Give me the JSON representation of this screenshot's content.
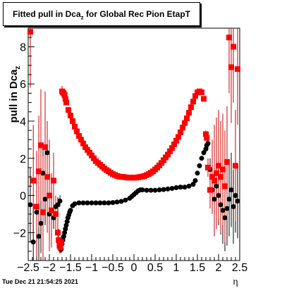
{
  "window": {
    "timestamp": "Tue Dec 21 21:54:25 2021"
  },
  "chart_data": {
    "type": "scatter",
    "title": "Fitted pull in Dca",
    "title_sub": "z",
    "title_suffix": " for Global Rec Pion EtapT",
    "xlabel": "η",
    "ylabel": "pull in Dca",
    "ylabel_sub": "z",
    "xlim": [
      -2.5,
      2.5
    ],
    "ylim": [
      -3.5,
      9.0
    ],
    "xticks": [
      -2.5,
      -2,
      -1.5,
      -1,
      -0.5,
      0,
      0.5,
      1,
      1.5,
      2,
      2.5
    ],
    "xtick_labels": [
      "−2.5",
      "−2",
      "−1.5",
      "−1",
      "−0.5",
      "0",
      "0.5",
      "1",
      "1.5",
      "2",
      "2.5"
    ],
    "yticks": [
      -2,
      0,
      2,
      4,
      6,
      8
    ],
    "ytick_labels": [
      "−2",
      "0",
      "2",
      "4",
      "6",
      "8"
    ],
    "grid": false,
    "colors": {
      "mean": "#000000",
      "sigma": "#ff0000",
      "sigma_bars": "#cc0000"
    },
    "series": [
      {
        "marker": "circle",
        "color": "#000000",
        "x": [
          -2.45,
          -2.38,
          -2.3,
          -2.25,
          -2.2,
          -2.15,
          -2.1,
          -2.05,
          -2.0,
          -1.95,
          -1.9,
          -1.85,
          -1.8,
          -1.75,
          -1.72,
          -1.7,
          -1.68,
          -1.66,
          -1.64,
          -1.62,
          -1.6,
          -1.58,
          -1.56,
          -1.54,
          -1.52,
          -1.5,
          -1.45,
          -1.4,
          -1.3,
          -1.2,
          -1.1,
          -1.0,
          -0.9,
          -0.8,
          -0.7,
          -0.6,
          -0.5,
          -0.4,
          -0.3,
          -0.2,
          -0.1,
          -0.05,
          0.0,
          0.05,
          0.1,
          0.15,
          0.2,
          0.3,
          0.4,
          0.5,
          0.6,
          0.7,
          0.8,
          0.9,
          1.0,
          1.1,
          1.2,
          1.3,
          1.4,
          1.45,
          1.5,
          1.55,
          1.6,
          1.65,
          1.7,
          1.72,
          1.75,
          1.8,
          1.85,
          1.9,
          1.95,
          2.0,
          2.05,
          2.1,
          2.15,
          2.2,
          2.25,
          2.3,
          2.35,
          2.4,
          2.45
        ],
        "y": [
          -0.5,
          -2.5,
          -0.9,
          -2.2,
          -1.5,
          1.2,
          -0.2,
          2.3,
          -1.0,
          -0.8,
          -1.2,
          -0.6,
          -0.5,
          -0.3,
          -2.9,
          -2.6,
          -2.4,
          -2.2,
          -2.0,
          -1.8,
          -1.6,
          -1.4,
          -1.2,
          -1.05,
          -0.9,
          -0.8,
          -0.55,
          -0.45,
          -0.4,
          -0.4,
          -0.4,
          -0.4,
          -0.4,
          -0.4,
          -0.4,
          -0.4,
          -0.38,
          -0.35,
          -0.32,
          -0.25,
          -0.15,
          -0.05,
          0.05,
          0.15,
          0.25,
          0.3,
          0.3,
          0.28,
          0.28,
          0.28,
          0.3,
          0.32,
          0.35,
          0.38,
          0.42,
          0.45,
          0.45,
          0.5,
          0.6,
          0.8,
          1.2,
          1.6,
          2.0,
          2.3,
          2.5,
          2.7,
          2.8,
          1.4,
          0.3,
          -0.2,
          0.5,
          0.0,
          -0.5,
          -0.8,
          -1.2,
          -0.7,
          -0.2,
          0.3,
          -0.6,
          0.0,
          -0.3
        ],
        "yerr": [
          2.0,
          2.0,
          1.8,
          1.8,
          1.6,
          1.5,
          1.4,
          1.2,
          1.0,
          0.8,
          0.6,
          0.5,
          0.4,
          0.3,
          0.2,
          0.2,
          0.2,
          0.2,
          0.2,
          0.15,
          0.15,
          0.15,
          0.1,
          0.1,
          0.1,
          0.1,
          0.05,
          0.05,
          0.05,
          0.05,
          0.05,
          0.05,
          0.05,
          0.05,
          0.05,
          0.05,
          0.05,
          0.05,
          0.05,
          0.05,
          0.05,
          0.05,
          0.05,
          0.05,
          0.05,
          0.05,
          0.05,
          0.05,
          0.05,
          0.05,
          0.05,
          0.05,
          0.05,
          0.05,
          0.05,
          0.05,
          0.05,
          0.05,
          0.05,
          0.05,
          0.1,
          0.1,
          0.1,
          0.15,
          0.2,
          0.2,
          0.3,
          0.6,
          1.0,
          1.3,
          1.4,
          1.6,
          1.6,
          1.8,
          1.8,
          2.0,
          2.0,
          2.0,
          2.0,
          2.0,
          2.0
        ]
      },
      {
        "marker": "square",
        "color": "#ff0000",
        "x": [
          -2.45,
          -2.38,
          -2.3,
          -2.25,
          -2.2,
          -2.15,
          -2.1,
          -2.05,
          -2.0,
          -1.95,
          -1.9,
          -1.85,
          -1.8,
          -1.78,
          -1.76,
          -1.74,
          -1.72,
          -1.7,
          -1.68,
          -1.66,
          -1.64,
          -1.62,
          -1.6,
          -1.55,
          -1.5,
          -1.45,
          -1.4,
          -1.35,
          -1.3,
          -1.25,
          -1.2,
          -1.15,
          -1.1,
          -1.05,
          -1.0,
          -0.95,
          -0.9,
          -0.85,
          -0.8,
          -0.75,
          -0.7,
          -0.65,
          -0.6,
          -0.55,
          -0.5,
          -0.45,
          -0.4,
          -0.35,
          -0.3,
          -0.25,
          -0.2,
          -0.15,
          -0.1,
          -0.05,
          0.0,
          0.05,
          0.1,
          0.15,
          0.2,
          0.25,
          0.3,
          0.35,
          0.4,
          0.45,
          0.5,
          0.55,
          0.6,
          0.65,
          0.7,
          0.75,
          0.8,
          0.85,
          0.9,
          0.95,
          1.0,
          1.05,
          1.1,
          1.15,
          1.2,
          1.25,
          1.3,
          1.35,
          1.4,
          1.45,
          1.5,
          1.55,
          1.6,
          1.65,
          1.7,
          1.72,
          1.75,
          1.8,
          1.85,
          1.9,
          1.95,
          2.0,
          2.05,
          2.1,
          2.15,
          2.2,
          2.25,
          2.3,
          2.35,
          2.4,
          2.45
        ],
        "y": [
          8.8,
          0.8,
          -0.6,
          1.3,
          2.7,
          -0.9,
          2.6,
          1.0,
          0.0,
          -0.8,
          0.8,
          -1.0,
          -2.0,
          -2.4,
          -2.7,
          -2.8,
          -2.5,
          5.6,
          5.55,
          5.5,
          5.4,
          5.2,
          5.0,
          4.6,
          4.3,
          4.0,
          3.7,
          3.45,
          3.2,
          3.0,
          2.8,
          2.6,
          2.45,
          2.3,
          2.15,
          2.0,
          1.85,
          1.75,
          1.65,
          1.55,
          1.45,
          1.37,
          1.3,
          1.22,
          1.15,
          1.1,
          1.05,
          1.02,
          1.0,
          1.0,
          0.98,
          0.96,
          0.96,
          0.96,
          0.96,
          0.96,
          0.98,
          1.0,
          1.02,
          1.05,
          1.1,
          1.15,
          1.22,
          1.3,
          1.4,
          1.5,
          1.62,
          1.75,
          1.9,
          2.05,
          2.2,
          2.38,
          2.55,
          2.75,
          2.95,
          3.15,
          3.4,
          3.65,
          3.9,
          4.15,
          4.45,
          4.75,
          5.05,
          5.35,
          5.55,
          5.6,
          5.55,
          5.2,
          3.3,
          3.1,
          1.5,
          0.3,
          1.0,
          0.8,
          1.2,
          1.6,
          1.0,
          1.4,
          0.5,
          1.8,
          8.5,
          6.9,
          8.0,
          1.6,
          6.8
        ],
        "yerr": [
          3.0,
          3.0,
          3.0,
          3.0,
          3.0,
          3.0,
          3.0,
          3.0,
          3.0,
          2.0,
          1.5,
          1.0,
          0.8,
          0.6,
          0.4,
          0.3,
          0.3,
          0.3,
          0.2,
          0.2,
          0.15,
          0.15,
          0.1,
          0.1,
          0.1,
          0.05,
          0.05,
          0.05,
          0.05,
          0.05,
          0.05,
          0.05,
          0.05,
          0.05,
          0.05,
          0.05,
          0.05,
          0.05,
          0.05,
          0.05,
          0.05,
          0.05,
          0.05,
          0.05,
          0.05,
          0.05,
          0.05,
          0.05,
          0.05,
          0.05,
          0.05,
          0.05,
          0.05,
          0.05,
          0.05,
          0.05,
          0.05,
          0.05,
          0.05,
          0.05,
          0.05,
          0.05,
          0.05,
          0.05,
          0.05,
          0.05,
          0.05,
          0.05,
          0.05,
          0.05,
          0.05,
          0.05,
          0.05,
          0.05,
          0.05,
          0.05,
          0.05,
          0.05,
          0.05,
          0.05,
          0.05,
          0.05,
          0.05,
          0.05,
          0.05,
          0.05,
          0.1,
          0.1,
          0.2,
          0.3,
          0.5,
          1.0,
          2.0,
          3.0,
          3.0,
          3.0,
          3.0,
          3.0,
          3.0,
          3.0,
          3.0,
          3.0,
          3.0,
          3.0,
          3.0
        ]
      }
    ]
  }
}
